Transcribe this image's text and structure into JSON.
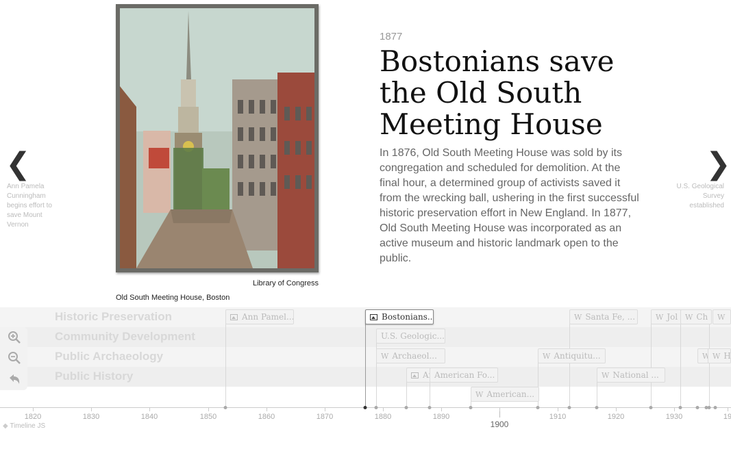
{
  "slide": {
    "date": "1877",
    "headline": "Bostonians save the Old South Meeting House",
    "text": "In 1876, Old South Meeting House was sold by its congregation and scheduled for demolition. At the final hour, a determined group of activists saved it from the wrecking ball, ushering in the first successful historic preservation effort in New England. In 1877, Old South Meeting House was incorporated as an active museum and historic landmark open to the public.",
    "media_credit": "Library of Congress",
    "media_caption": "Old South Meeting House, Boston"
  },
  "nav": {
    "prev_icon": "chevron-left-icon",
    "prev_arrow": "❮",
    "prev_label": "Ann Pamela Cunningham begins effort to save Mount Vernon",
    "next_icon": "chevron-right-icon",
    "next_arrow": "❯",
    "next_label": "U.S. Geological Survey established"
  },
  "groups": [
    "Historic Preservation",
    "Community Development",
    "Public Archaeology",
    "Public History"
  ],
  "markers": [
    {
      "label": "Ann Pamel...",
      "icon": "image"
    },
    {
      "label": "Bostonians...",
      "icon": "image"
    },
    {
      "label": "Santa Fe, ...",
      "icon": "wikipedia"
    },
    {
      "label": "Jol",
      "icon": "wikipedia"
    },
    {
      "label": "Ch",
      "icon": "wikipedia"
    },
    {
      "label": "",
      "icon": "wikipedia"
    },
    {
      "label": "U.S. Geologic...",
      "icon": "none"
    },
    {
      "label": "Archaeol...",
      "icon": "wikipedia"
    },
    {
      "label": "Antiquitu...",
      "icon": "wikipedia"
    },
    {
      "label": "",
      "icon": "wikipedia"
    },
    {
      "label": "H",
      "icon": "wikipedia"
    },
    {
      "label": "Ar",
      "icon": "image"
    },
    {
      "label": "American Fo...",
      "icon": "none"
    },
    {
      "label": "National ...",
      "icon": "wikipedia"
    },
    {
      "label": "American...",
      "icon": "wikipedia"
    }
  ],
  "axis": {
    "ticks": [
      "1820",
      "1830",
      "1840",
      "1850",
      "1860",
      "1870",
      "1880",
      "1890",
      "1900",
      "1910",
      "1920",
      "1930",
      "19"
    ],
    "major": "1900"
  },
  "controls": {
    "zoom_in_icon": "zoom-in-icon",
    "zoom_out_icon": "zoom-out-icon",
    "back_icon": "back-to-start-icon"
  },
  "brand": "Timeline JS",
  "colors": {
    "headline": "#111111",
    "body_text": "#666666",
    "active_marker_border": "#888888"
  }
}
